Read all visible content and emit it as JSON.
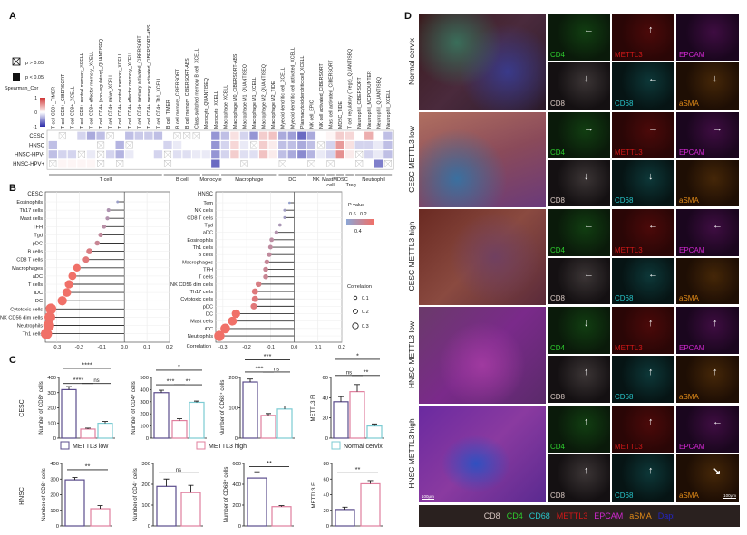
{
  "panels": {
    "a": "A",
    "b": "B",
    "c": "C",
    "d": "D"
  },
  "chart_data": [
    {
      "type": "heatmap",
      "panel": "A",
      "rows": [
        "CESC",
        "HNSC",
        "HNSC-HPV-",
        "HNSC-HPV+"
      ],
      "columns": [
        "T cell CD8+_TIMER",
        "T cell CD8+_CIBERSORT",
        "T cell CD8+_XCELL",
        "T cell CD8+ central memory_XCELL",
        "T cell CD8+ effector memory_XCELL",
        "T cell CD4+ (non-regulatory)_QUANTISEQ",
        "T cell CD4+ naive_XCELL",
        "T cell CD4+ central memory_XCELL",
        "T cell CD4+ effector memory_XCELL",
        "T cell CD4+ memory activated_CIBERSORT",
        "T cell CD4+ memory activated_CIBERSORT-ABS",
        "T cell CD4+ Th1_XCELL",
        "B cell_TIMER",
        "B cell memory_CIBERSORT",
        "B cell memory_CIBERSORT-ABS",
        "Class-switched memory B cell_XCELL",
        "Monocyte_QUANTISEQ",
        "Monocyte_XCELL",
        "Macrophage_XCELL",
        "Macrophage M0_CIBERSORT-ABS",
        "Macrophage M1_QUANTISEQ",
        "Macrophage M1_XCELL",
        "Macrophage M2_QUANTISEQ",
        "Macrophage M2_TIDE",
        "Myeloid dendritic cell_XCELL",
        "Myeloid dendritic cell activated_XCELL",
        "Plasmacytoid dendritic cell_XCELL",
        "NK cell_EPIC",
        "NK cell activated_CIBERSORT",
        "Mast cell activated_CIBERSORT",
        "MDSC_TIDE",
        "T cell regulatory (Tregs)_QUANTISEQ",
        "Neutrophil_CIBERSORT",
        "Neutrophil_MCPCOUNTER",
        "Neutrophil_QUANTISEQ",
        "Neutrophil_XCELL"
      ],
      "groups": [
        {
          "label": "T cell",
          "count": 12
        },
        {
          "label": "B cell",
          "count": 4
        },
        {
          "label": "Monocyte",
          "count": 2
        },
        {
          "label": "Macrophage",
          "count": 6
        },
        {
          "label": "DC",
          "count": 3
        },
        {
          "label": "NK",
          "count": 2
        },
        {
          "label": "Mast cell",
          "count": 1
        },
        {
          "label": "MDSC",
          "count": 1
        },
        {
          "label": "Treg",
          "count": 1
        },
        {
          "label": "Neutrophil",
          "count": 4
        }
      ],
      "values": [
        [
          0,
          0,
          0,
          -0.2,
          -0.4,
          -0.3,
          0,
          0,
          -0.3,
          -0.25,
          -0.25,
          -0.3,
          0,
          0,
          0,
          0,
          0,
          -0.5,
          -0.3,
          0.15,
          -0.2,
          -0.5,
          0.25,
          0.3,
          -0.4,
          -0.45,
          -0.7,
          -0.4,
          0,
          0.05,
          0.25,
          0.2,
          0,
          0.4,
          0,
          -0.3
        ],
        [
          -0.3,
          0,
          0,
          0,
          0,
          0,
          0,
          -0.35,
          0,
          0,
          0,
          0,
          -0.2,
          -0.1,
          0,
          0,
          0,
          -0.5,
          -0.2,
          0.2,
          -0.1,
          0,
          0.25,
          0.1,
          -0.3,
          -0.3,
          -0.4,
          -0.3,
          0,
          -0.2,
          0.5,
          0.15,
          -0.2,
          -0.2,
          -0.1,
          -0.3
        ],
        [
          -0.3,
          -0.2,
          -0.2,
          0,
          -0.1,
          0,
          -0.2,
          -0.35,
          -0.1,
          0,
          0,
          -0.2,
          0,
          -0.15,
          -0.15,
          -0.1,
          -0.1,
          -0.5,
          -0.2,
          0.25,
          -0.15,
          -0.15,
          0.3,
          0.1,
          -0.3,
          -0.4,
          -0.55,
          -0.35,
          -0.1,
          -0.2,
          0.55,
          0.1,
          0,
          -0.2,
          -0.1,
          -0.3
        ],
        [
          0,
          0.05,
          0.05,
          0.05,
          0.05,
          0,
          0,
          0,
          0,
          0,
          0,
          0,
          0,
          0,
          0,
          0,
          0,
          -0.7,
          0,
          0,
          0,
          0,
          0,
          0,
          0,
          0,
          0,
          0,
          0,
          0,
          0,
          0,
          0,
          0,
          -0.6,
          0
        ]
      ],
      "nonsignificant": [
        [
          1,
          6,
          13,
          14,
          15
        ],
        [
          5,
          8,
          21,
          28
        ],
        [
          3,
          5,
          12,
          32
        ],
        [
          0,
          5,
          7,
          12,
          20,
          24,
          27,
          29,
          32,
          35
        ]
      ],
      "legend": {
        "ns_label": "p > 0.05",
        "sig_label": "p < 0.05",
        "scale_title": "Spearman_Cor",
        "scale_ticks": [
          "1",
          "0",
          "-1"
        ],
        "negative_color": "#2a2aa8",
        "positive_color": "#d03535"
      }
    },
    {
      "type": "lollipop",
      "panel": "B",
      "title": "CESC",
      "categories": [
        "Eosinophils",
        "Th17 cells",
        "Mast cells",
        "TFH",
        "Tgd",
        "pDC",
        "B cells",
        "CD8 T cells",
        "Macrophages",
        "aDC",
        "T cells",
        "iDC",
        "DC",
        "Cytotoxic cells",
        "NK CD56 dim cells",
        "Neutrophils",
        "Th1 cells"
      ],
      "values": [
        -0.03,
        -0.07,
        -0.075,
        -0.09,
        -0.105,
        -0.12,
        -0.155,
        -0.17,
        -0.21,
        -0.23,
        -0.245,
        -0.255,
        -0.275,
        -0.325,
        -0.33,
        -0.335,
        -0.345
      ],
      "xlim": [
        -0.35,
        0.2
      ],
      "xticks": [
        "-0.3",
        "-0.2",
        "-0.1",
        "0.0",
        "0.1",
        "0.2"
      ],
      "grid": true
    },
    {
      "type": "lollipop",
      "panel": "B",
      "title": "HNSC",
      "xlabel": "Correlation",
      "categories": [
        "Tem",
        "NK cells",
        "CD8 T cells",
        "Tgd",
        "aDC",
        "Eosinophils",
        "Th1 cells",
        "B cells",
        "Macrophages",
        "TFH",
        "T cells",
        "NK CD56 dim cells",
        "Th17 cells",
        "Cytotoxic cells",
        "pDC",
        "DC",
        "Mast cells",
        "iDC",
        "Neutrophils"
      ],
      "values": [
        -0.02,
        -0.04,
        -0.04,
        -0.06,
        -0.075,
        -0.095,
        -0.1,
        -0.105,
        -0.115,
        -0.12,
        -0.12,
        -0.15,
        -0.165,
        -0.165,
        -0.17,
        -0.245,
        -0.26,
        -0.29,
        -0.315
      ],
      "xlim": [
        -0.33,
        0.2
      ],
      "xticks": [
        "-0.3",
        "-0.2",
        "-0.1",
        "0.0",
        "0.1",
        "0.2"
      ],
      "grid": true,
      "legend": {
        "pvalue_title": "P value",
        "pvalue_ticks_top": [
          "0.6",
          "0.2"
        ],
        "pvalue_tick_bottom": "0.4",
        "pvalue_colors": [
          "#8ba6d6",
          "#f07068"
        ],
        "size_title": "Correlation",
        "size_ticks": [
          "0.1",
          "0.2",
          "0.3"
        ]
      }
    },
    {
      "type": "bar",
      "panel": "C",
      "series_names": [
        "METTL3 low",
        "METTL3 high",
        "Normal cervix"
      ],
      "series_colors": [
        "#5b4c8c",
        "#e07f9e",
        "#7ccbd3"
      ],
      "charts": [
        {
          "row": "CESC",
          "ylabel": "Number of CD8⁺ cells",
          "ylim": [
            0,
            400
          ],
          "yticks": [
            0,
            100,
            200,
            300,
            400
          ],
          "values": [
            320,
            60,
            98
          ],
          "errors": [
            20,
            6,
            12
          ],
          "annotations": [
            {
              "a": 0,
              "b": 2,
              "y": 460,
              "label": "****"
            },
            {
              "a": 0,
              "b": 1,
              "y": 360,
              "label": "****"
            },
            {
              "a": 1,
              "b": 2,
              "y": 360,
              "label": "ns"
            }
          ]
        },
        {
          "row": "CESC",
          "ylabel": "Number of CD4⁺ cells",
          "ylim": [
            0,
            500
          ],
          "yticks": [
            0,
            100,
            200,
            300,
            400,
            500
          ],
          "values": [
            375,
            145,
            295
          ],
          "errors": [
            20,
            15,
            10
          ],
          "annotations": [
            {
              "a": 0,
              "b": 2,
              "y": 560,
              "label": "*"
            },
            {
              "a": 0,
              "b": 1,
              "y": 440,
              "label": "***"
            },
            {
              "a": 1,
              "b": 2,
              "y": 440,
              "label": "**"
            }
          ]
        },
        {
          "row": "CESC",
          "ylabel": "Number of CD68⁺ cells",
          "ylim": [
            0,
            250
          ],
          "yticks": [
            0,
            100,
            200
          ],
          "values": [
            185,
            75,
            96
          ],
          "errors": [
            10,
            6,
            10
          ],
          "annotations": [
            {
              "a": 0,
              "b": 2,
              "y": 258,
              "label": "***"
            },
            {
              "a": 0,
              "b": 1,
              "y": 218,
              "label": "***"
            },
            {
              "a": 1,
              "b": 2,
              "y": 218,
              "label": "ns"
            }
          ]
        },
        {
          "row": "CESC",
          "ylabel": "METTL3 FI",
          "ylim": [
            0,
            70
          ],
          "yticks": [
            0,
            20,
            40,
            60
          ],
          "values": [
            36,
            46,
            12
          ],
          "errors": [
            5,
            7,
            2
          ],
          "annotations": [
            {
              "a": 0,
              "b": 2,
              "y": 78,
              "label": "*"
            },
            {
              "a": 0,
              "b": 1,
              "y": 62,
              "label": "ns"
            },
            {
              "a": 1,
              "b": 2,
              "y": 62,
              "label": "**"
            }
          ]
        },
        {
          "row": "HNSC",
          "ylabel": "Number of CD8⁺ cells",
          "ylim": [
            0,
            400
          ],
          "yticks": [
            0,
            100,
            200,
            300,
            400
          ],
          "values": [
            295,
            110
          ],
          "errors": [
            15,
            20
          ],
          "annotations": [
            {
              "a": 0,
              "b": 1,
              "y": 360,
              "label": "**"
            }
          ]
        },
        {
          "row": "HNSC",
          "ylabel": "Number of CD4⁺ cells",
          "ylim": [
            0,
            300
          ],
          "yticks": [
            0,
            100,
            200,
            300
          ],
          "values": [
            190,
            160
          ],
          "errors": [
            35,
            35
          ],
          "annotations": [
            {
              "a": 0,
              "b": 1,
              "y": 255,
              "label": "ns"
            }
          ]
        },
        {
          "row": "HNSC",
          "ylabel": "Number of CD68⁺ cells",
          "ylim": [
            0,
            600
          ],
          "yticks": [
            0,
            200,
            400,
            600
          ],
          "values": [
            460,
            185
          ],
          "errors": [
            60,
            10
          ],
          "annotations": [
            {
              "a": 0,
              "b": 1,
              "y": 570,
              "label": "**"
            }
          ]
        },
        {
          "row": "HNSC",
          "ylabel": "METTL3 FI",
          "ylim": [
            0,
            80
          ],
          "yticks": [
            0,
            20,
            40,
            60,
            80
          ],
          "values": [
            21,
            54
          ],
          "errors": [
            3,
            4
          ],
          "annotations": [
            {
              "a": 0,
              "b": 1,
              "y": 68,
              "label": "**"
            }
          ]
        }
      ]
    }
  ],
  "panel_d": {
    "rows": [
      {
        "label": "Normal cervix",
        "arrows": [
          "left",
          "up",
          "",
          "down",
          "left",
          "down"
        ]
      },
      {
        "label": "CESC METTL3 low",
        "arrows": [
          "right",
          "right",
          "right",
          "down",
          "down",
          ""
        ]
      },
      {
        "label": "CESC METTL3 high",
        "arrows": [
          "left",
          "left",
          "left",
          "left",
          "left",
          ""
        ]
      },
      {
        "label": "HNSC METTL3 low",
        "arrows": [
          "down",
          "up",
          "up",
          "up",
          "up",
          "up"
        ]
      },
      {
        "label": "HNSC METTL3 high",
        "arrows": [
          "up",
          "up",
          "left",
          "up",
          "up",
          "down-right"
        ],
        "scale_bar": "100μm"
      }
    ],
    "markers": [
      {
        "name": "CD4",
        "color": "#2ecc2e"
      },
      {
        "name": "METTL3",
        "color": "#d01818"
      },
      {
        "name": "EPCAM",
        "color": "#d028d0"
      },
      {
        "name": "CD8",
        "color": "#d8c8c2"
      },
      {
        "name": "CD68",
        "color": "#28c4c8"
      },
      {
        "name": "aSMA",
        "color": "#e08a18"
      }
    ],
    "legend": [
      {
        "name": "CD8",
        "color": "#d8c8c2"
      },
      {
        "name": "CD4",
        "color": "#2ecc2e"
      },
      {
        "name": "CD68",
        "color": "#28c4c8"
      },
      {
        "name": "METTL3",
        "color": "#d01818"
      },
      {
        "name": "EPCAM",
        "color": "#d028d0"
      },
      {
        "name": "aSMA",
        "color": "#e08a18"
      },
      {
        "name": "Dapi",
        "color": "#2424c4"
      }
    ]
  }
}
